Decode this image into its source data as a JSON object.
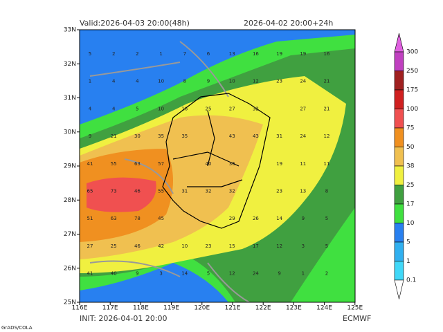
{
  "header": {
    "valid": "Valid:2026-04-03 20:00(48h)",
    "run": "2026-04-02 20:00+24h"
  },
  "footer": {
    "init": "INIT: 2026-04-01 20:00",
    "model": "ECMWF",
    "credit": "GrADS/COLA"
  },
  "map": {
    "lat_labels": [
      "33N",
      "32N",
      "31N",
      "30N",
      "29N",
      "28N",
      "27N",
      "26N",
      "25N"
    ],
    "lon_labels": [
      "116E",
      "117E",
      "118E",
      "119E",
      "120E",
      "121E",
      "122E",
      "123E",
      "124E",
      "125E"
    ],
    "grid_values": [
      [
        "5",
        "2",
        "2",
        "1",
        "7",
        "6",
        "13",
        "16",
        "19",
        "19",
        "16"
      ],
      [
        "1",
        "4",
        "4",
        "10",
        "8",
        "9",
        "10",
        "12",
        "23",
        "24",
        "21"
      ],
      [
        "4",
        "4",
        "5",
        "10",
        "16",
        "25",
        "27",
        "32",
        null,
        "27",
        "21"
      ],
      [
        "9",
        "21",
        "30",
        "35",
        "35",
        null,
        "43",
        "43",
        "31",
        "24",
        "12"
      ],
      [
        "41",
        "55",
        "63",
        "57",
        null,
        "40",
        "36",
        null,
        "19",
        "11",
        "11"
      ],
      [
        "65",
        "73",
        "46",
        "55",
        "31",
        "32",
        "32",
        null,
        "23",
        "13",
        "8"
      ],
      [
        "51",
        "63",
        "78",
        "45",
        null,
        null,
        "29",
        "26",
        "14",
        "9",
        "5"
      ],
      [
        "27",
        "25",
        "46",
        "42",
        "10",
        "23",
        "15",
        "17",
        "12",
        "3",
        "5"
      ],
      [
        "41",
        "40",
        "9",
        "3",
        "14",
        "5",
        "12",
        "24",
        "9",
        "1",
        "2"
      ]
    ]
  },
  "colorbar": {
    "levels": [
      "300",
      "250",
      "175",
      "100",
      "75",
      "50",
      "38",
      "25",
      "17",
      "10",
      "5",
      "1",
      "0.1"
    ],
    "colors": [
      "#e060e0",
      "#c040c0",
      "#a02020",
      "#d02020",
      "#f05050",
      "#f09020",
      "#f0c050",
      "#f0f040",
      "#40a040",
      "#40e040",
      "#2880f0",
      "#30b0f0",
      "#40d8f8",
      "#ffffff"
    ]
  }
}
